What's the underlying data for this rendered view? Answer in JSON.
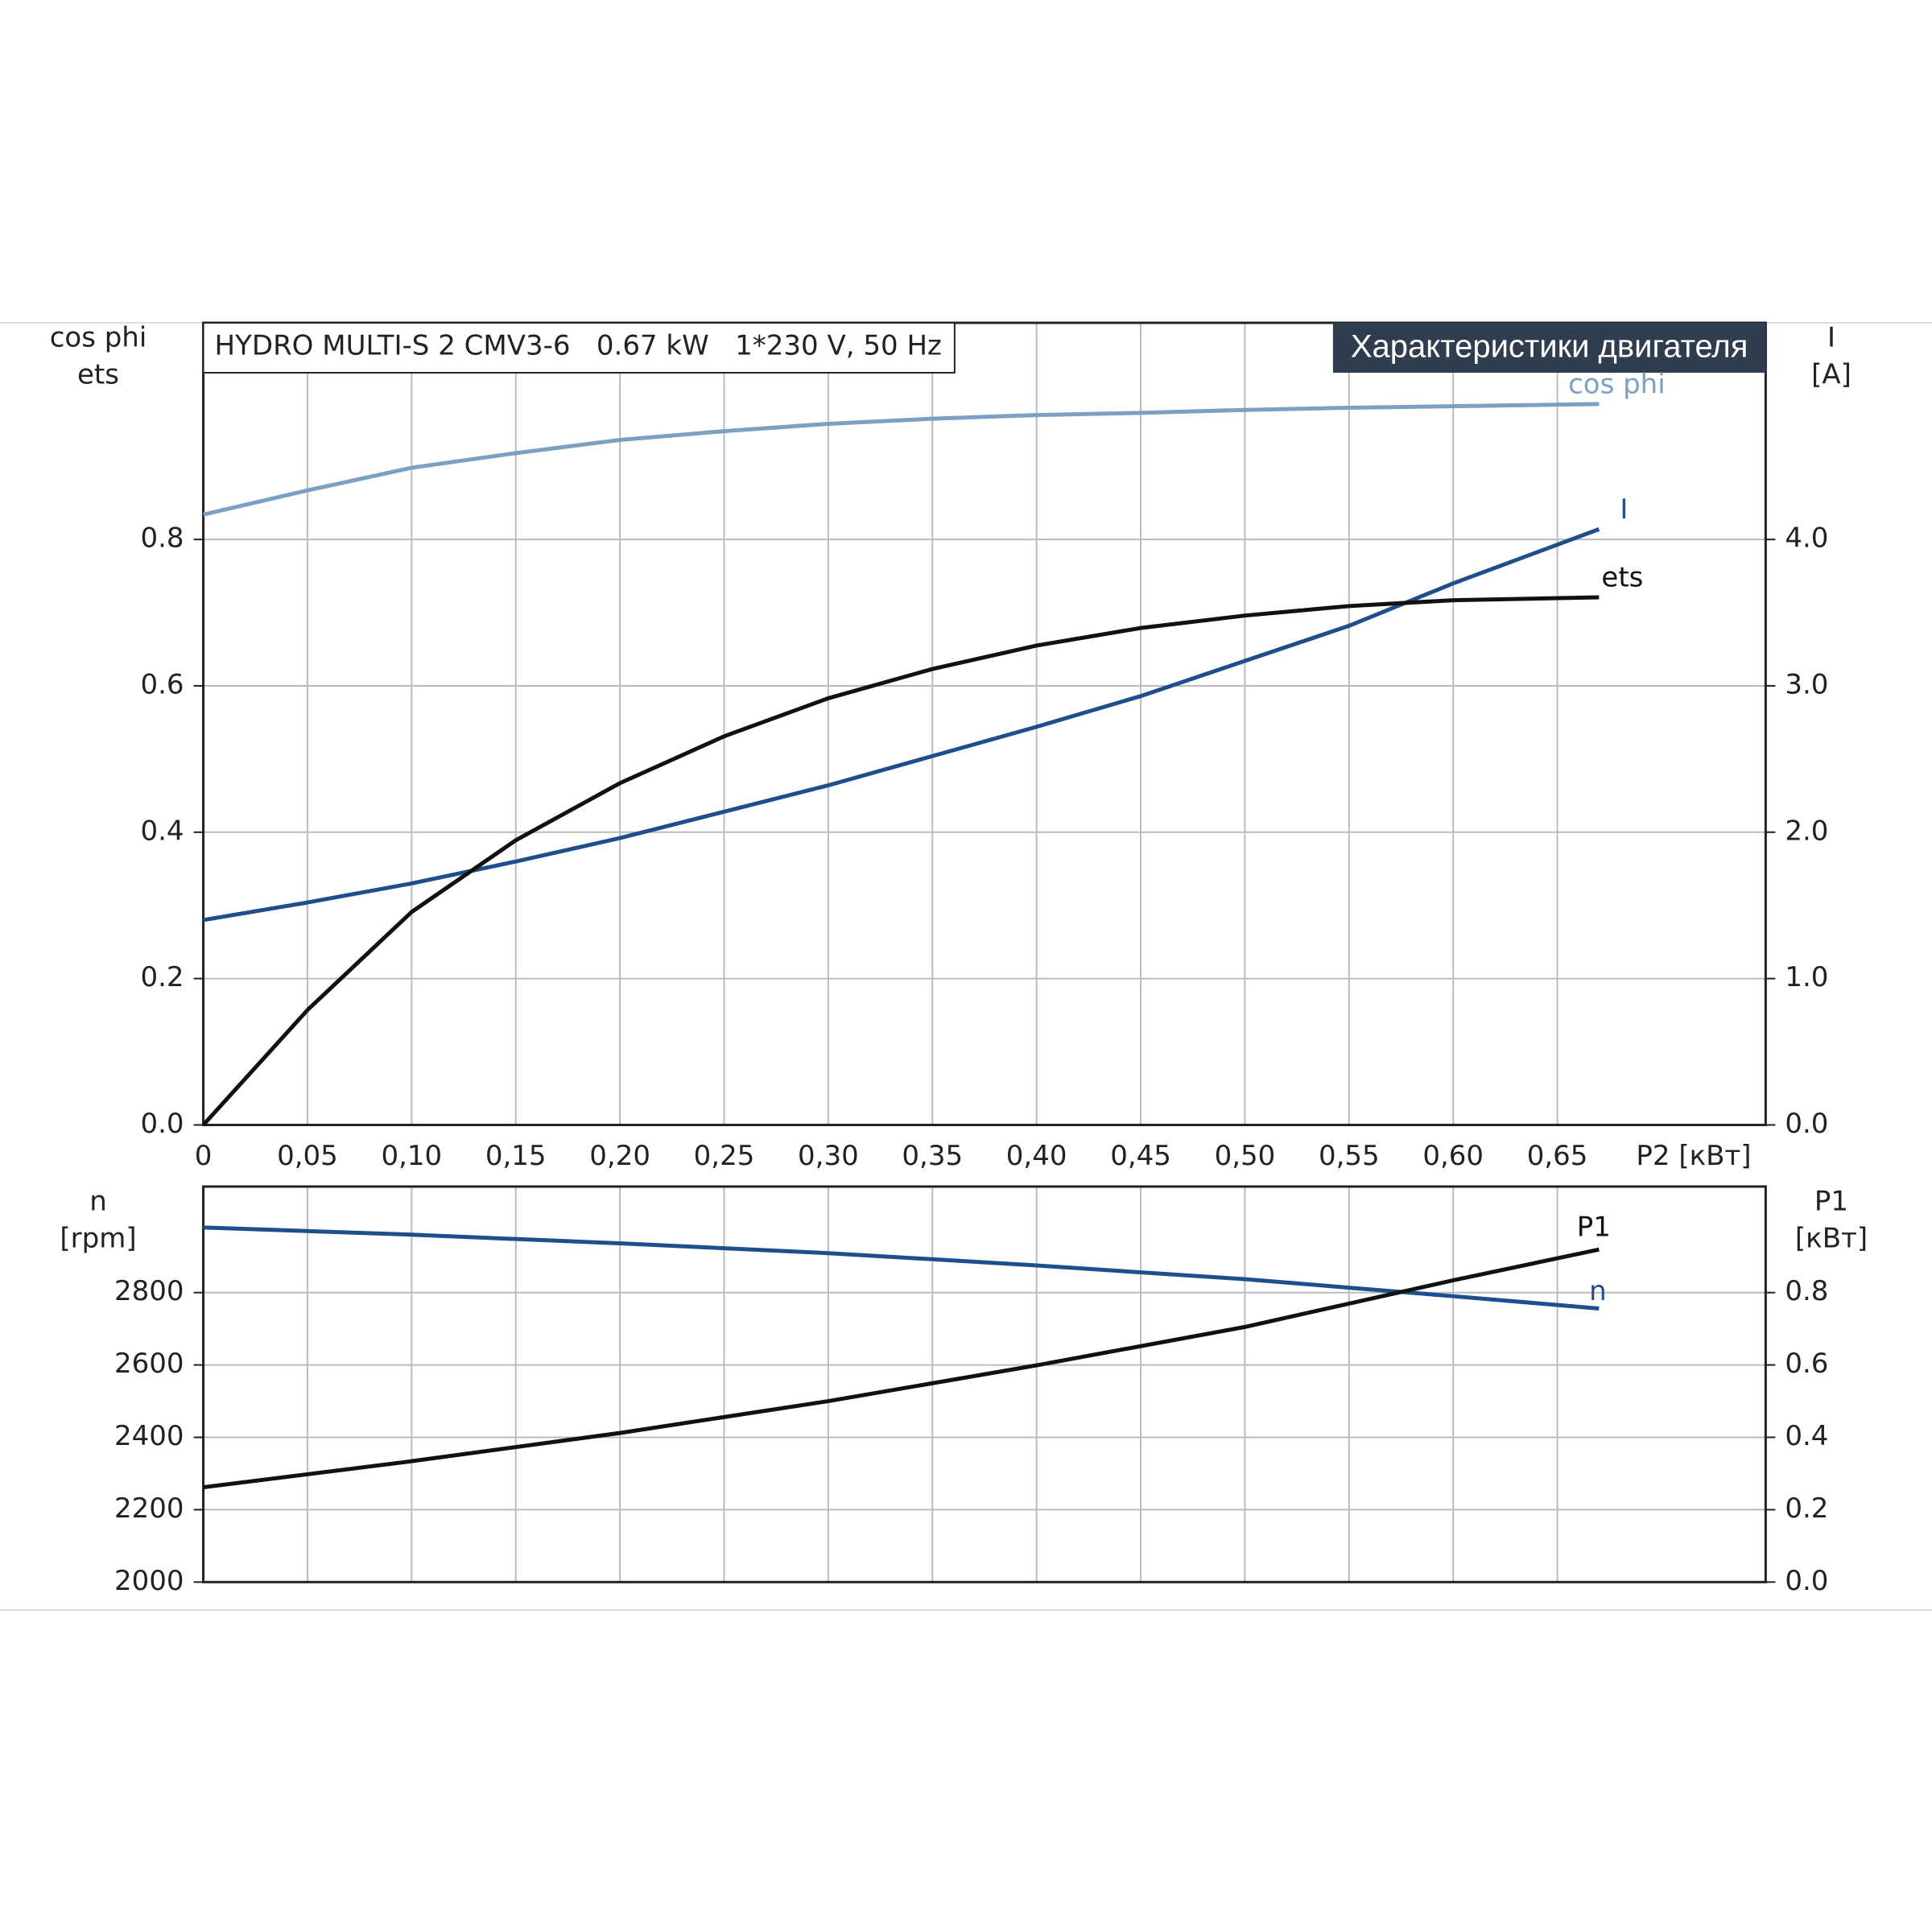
{
  "chart_data": [
    {
      "type": "line",
      "title": "HYDRO MULTI-S 2 CMV3-6   0.67 kW   1*230 V, 50 Hz",
      "subtitle": "Характеристики двигателя",
      "xlabel": "P2 [кВт]",
      "ylabel": [
        "cos phi",
        "ets"
      ],
      "y2label": [
        "I",
        "[A]"
      ],
      "x": [
        0,
        0.05,
        0.1,
        0.15,
        0.2,
        0.25,
        0.3,
        0.35,
        0.4,
        0.45,
        0.5,
        0.55,
        0.6,
        0.67
      ],
      "xlim": [
        0,
        0.75
      ],
      "xticks": [
        0,
        {
          "value": 0.05,
          "label": "0,05"
        },
        {
          "value": 0.1,
          "label": "0,10"
        },
        {
          "value": 0.15,
          "label": "0,15"
        },
        {
          "value": 0.2,
          "label": "0,20"
        },
        {
          "value": 0.25,
          "label": "0,25"
        },
        {
          "value": 0.3,
          "label": "0,30"
        },
        {
          "value": 0.35,
          "label": "0,35"
        },
        {
          "value": 0.4,
          "label": "0,40"
        },
        {
          "value": 0.45,
          "label": "0,45"
        },
        {
          "value": 0.5,
          "label": "0,50"
        },
        {
          "value": 0.55,
          "label": "0,55"
        },
        {
          "value": 0.6,
          "label": "0,60"
        },
        {
          "value": 0.65,
          "label": "0,65"
        }
      ],
      "ylim": [
        0,
        1.096
      ],
      "yticks": [
        {
          "value": 0,
          "label": "0.0"
        },
        0.2,
        0.4,
        0.6,
        0.8
      ],
      "y2lim": [
        0,
        5.48
      ],
      "y2ticks": [
        {
          "value": 0,
          "label": "0.0"
        },
        {
          "value": 1,
          "label": "1.0"
        },
        {
          "value": 2,
          "label": "2.0"
        },
        {
          "value": 3,
          "label": "3.0"
        },
        {
          "value": 4,
          "label": "4.0"
        }
      ],
      "grid": true,
      "series": [
        {
          "name": "cos phi",
          "color": "#7aa0c4",
          "values": [
            0.834,
            0.867,
            0.898,
            0.918,
            0.936,
            0.948,
            0.958,
            0.965,
            0.97,
            0.973,
            0.977,
            0.98,
            0.982,
            0.985
          ]
        },
        {
          "name": "I",
          "color": "#1f4e8c",
          "axis": "y2",
          "values": [
            1.4,
            1.52,
            1.65,
            1.8,
            1.96,
            2.14,
            2.32,
            2.52,
            2.72,
            2.93,
            3.17,
            3.41,
            3.7,
            4.07
          ]
        },
        {
          "name": "ets",
          "color": "#111111",
          "values": [
            0,
            0.157,
            0.291,
            0.389,
            0.467,
            0.531,
            0.583,
            0.623,
            0.655,
            0.679,
            0.696,
            0.709,
            0.717,
            0.721
          ]
        }
      ]
    },
    {
      "type": "line",
      "ylabel": [
        "n",
        "[rpm]"
      ],
      "y2label": [
        "P1",
        "[кВт]"
      ],
      "x": [
        0,
        0.1,
        0.2,
        0.3,
        0.4,
        0.5,
        0.6,
        0.67
      ],
      "xlim": [
        0,
        0.75
      ],
      "ylim": [
        2000,
        3093
      ],
      "yticks": [
        2000,
        2200,
        2400,
        2600,
        2800
      ],
      "y2lim": [
        0,
        1.093
      ],
      "y2ticks": [
        {
          "value": 0,
          "label": "0.0"
        },
        {
          "value": 0.2,
          "label": "0.2"
        },
        {
          "value": 0.4,
          "label": "0.4"
        },
        {
          "value": 0.6,
          "label": "0.6"
        },
        {
          "value": 0.8,
          "label": "0.8"
        }
      ],
      "grid": true,
      "series": [
        {
          "name": "n",
          "color": "#1f4e8c",
          "values": [
            2980,
            2960,
            2936,
            2909,
            2875,
            2837,
            2790,
            2756
          ]
        },
        {
          "name": "P1",
          "color": "#111111",
          "axis": "y2",
          "values": [
            0.262,
            0.334,
            0.412,
            0.5,
            0.599,
            0.705,
            0.834,
            0.919
          ]
        }
      ]
    }
  ]
}
